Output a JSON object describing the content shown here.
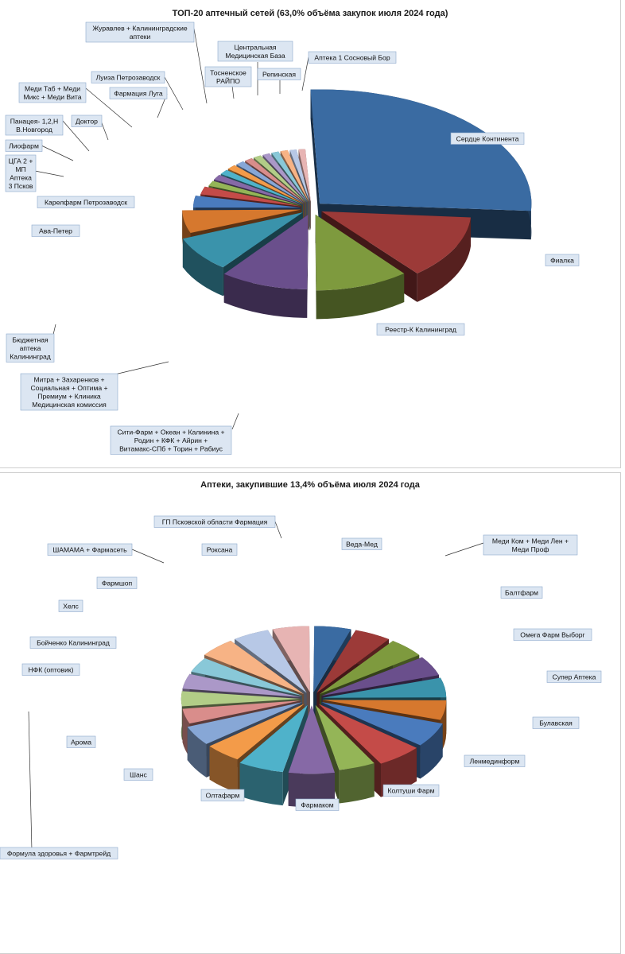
{
  "colors": {
    "palette": [
      "#3a6ba2",
      "#9c3a38",
      "#7e9a3e",
      "#6a4f8c",
      "#3a93ab",
      "#d6782e",
      "#4a7bbd",
      "#c44b48",
      "#94b557",
      "#8669a6",
      "#4fb2ca",
      "#f39b49",
      "#87a7d6",
      "#d98d8b",
      "#b2cd87",
      "#ab98c8",
      "#89c8d8",
      "#f7b385",
      "#b7c8e6",
      "#e7b4b3"
    ],
    "label_bg": "#dce6f2",
    "label_border": "#8ea9cc"
  },
  "chart_data": [
    {
      "type": "pie",
      "title": "ТОП-20 аптечный сетей (63,0% объёма закупок июля 2024 года)",
      "exploded": true,
      "three_d": true,
      "slices": [
        {
          "label": "Сердце Континента",
          "value": 27.0
        },
        {
          "label": "Фиалка",
          "value": 13.0
        },
        {
          "label": "Реестр-К Калининград",
          "value": 11.0
        },
        {
          "label": "Сити-Фарм + Океан + Калинина + Родин + КФК + Айрин + Витамакс-СПб + Торин + Рабиус",
          "value": 10.5
        },
        {
          "label": "Митра + Захаренков + Социальная + Оптима + Премиум + Клиника Медицинская комиссия",
          "value": 8.5
        },
        {
          "label": "Бюджетная аптека Калининград",
          "value": 6.0
        },
        {
          "label": "Ава-Петер",
          "value": 3.5
        },
        {
          "label": "Карелфарм Петрозаводск",
          "value": 2.5
        },
        {
          "label": "ЦГА 2 + МП Аптека 3 Псков",
          "value": 1.8
        },
        {
          "label": "Лиофарм",
          "value": 1.8
        },
        {
          "label": "Панацея- 1,2,Н В.Новгород",
          "value": 1.7
        },
        {
          "label": "Доктор",
          "value": 1.7
        },
        {
          "label": "Меди Таб + Меди Микс + Меди Вита",
          "value": 1.6
        },
        {
          "label": "Фармация Луга",
          "value": 1.5
        },
        {
          "label": "Луиза Петрозаводск",
          "value": 1.5
        },
        {
          "label": "Журавлев + Калининградские аптеки",
          "value": 1.4
        },
        {
          "label": "Тосненское РАЙПО",
          "value": 1.4
        },
        {
          "label": "Центральная Медицинская База",
          "value": 1.4
        },
        {
          "label": "Репинская",
          "value": 1.3
        },
        {
          "label": "Аптека 1 Сосновый Бор",
          "value": 1.3
        }
      ]
    },
    {
      "type": "pie",
      "title": "Аптеки, закупившие 13,4% объёма июля 2024 года",
      "exploded": true,
      "three_d": true,
      "slices": [
        {
          "label": "Веда-Мед",
          "value": 5
        },
        {
          "label": "Меди Ком + Меди Лен + Меди Проф",
          "value": 5
        },
        {
          "label": "Балтфарм",
          "value": 5
        },
        {
          "label": "Омега Фарм Выборг",
          "value": 5
        },
        {
          "label": "Супер Аптека",
          "value": 5
        },
        {
          "label": "Булавская",
          "value": 5
        },
        {
          "label": "Ленмединформ",
          "value": 6
        },
        {
          "label": "Колтуши Фарм",
          "value": 6
        },
        {
          "label": "Фармаком",
          "value": 5
        },
        {
          "label": "Олтафарм",
          "value": 6
        },
        {
          "label": "Шанс",
          "value": 6
        },
        {
          "label": "Арома",
          "value": 5
        },
        {
          "label": "Формула здоровья + Фармтрейд",
          "value": 5
        },
        {
          "label": "НФК (оптовик)",
          "value": 4
        },
        {
          "label": "Бойченко Калининград",
          "value": 4
        },
        {
          "label": "Хелс",
          "value": 4
        },
        {
          "label": "Фармшоп",
          "value": 4
        },
        {
          "label": "ШАМАМА + Фармасеть",
          "value": 5
        },
        {
          "label": "Роксана",
          "value": 5
        },
        {
          "label": "ГП Псковской области Фармация",
          "value": 5
        }
      ]
    }
  ]
}
